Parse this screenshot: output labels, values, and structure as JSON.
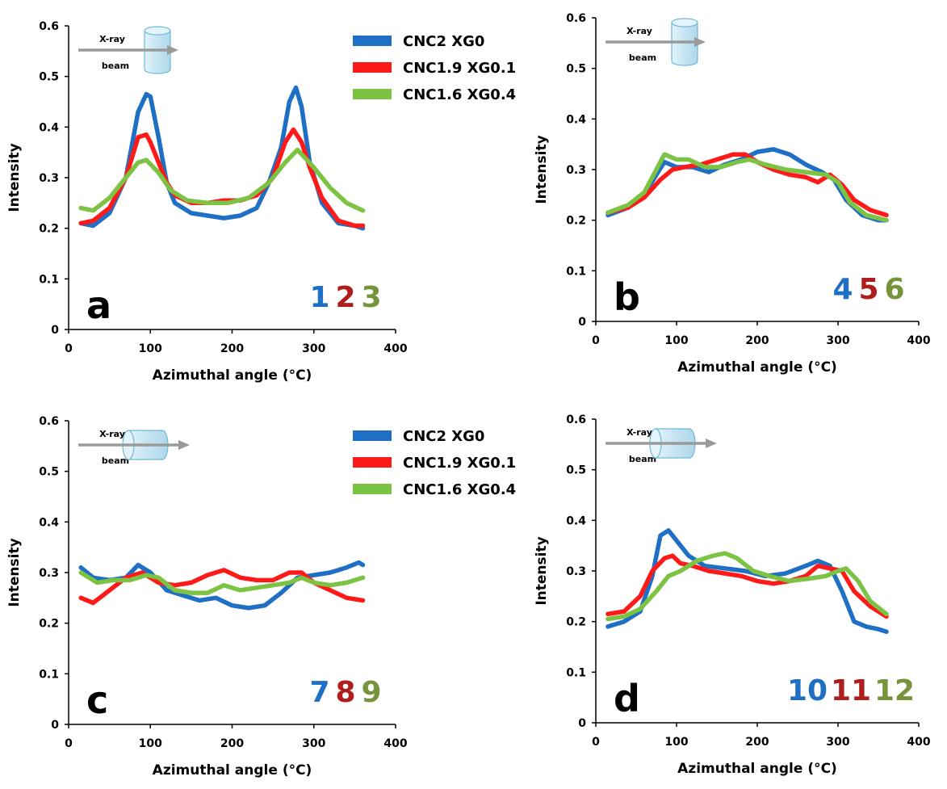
{
  "colors": {
    "series1": "#1f6fc5",
    "series2": "#ff1a1a",
    "series3": "#7cc243",
    "num1": "#1f6fc5",
    "num2": "#b01d1d",
    "num3": "#77933c",
    "cyl": "#cde8f2"
  },
  "xlabel": "Azimuthal angle (°C)",
  "ylabel": "Intensity",
  "inset": {
    "line1": "X-ray",
    "line2": "beam"
  },
  "chart_data": [
    {
      "type": "line",
      "panel": "a",
      "xlim": [
        0,
        400
      ],
      "ylim": [
        0,
        0.6
      ],
      "xticks": [
        0,
        100,
        200,
        300,
        400
      ],
      "yticks": [
        0,
        0.1,
        0.2,
        0.3,
        0.4,
        0.5,
        0.6
      ],
      "xlabel": "Azimuthal angle (°C)",
      "ylabel": "Intensity",
      "legend": "top-right",
      "sample_numbers": [
        "1",
        "2",
        "3"
      ],
      "cylinder": "vertical",
      "series": [
        {
          "name": "CNC2 XG0",
          "x": [
            15,
            30,
            50,
            70,
            85,
            95,
            100,
            110,
            120,
            130,
            150,
            170,
            190,
            210,
            230,
            245,
            260,
            270,
            278,
            285,
            295,
            310,
            330,
            350,
            360
          ],
          "y": [
            0.21,
            0.205,
            0.23,
            0.3,
            0.43,
            0.465,
            0.46,
            0.38,
            0.29,
            0.25,
            0.23,
            0.225,
            0.22,
            0.225,
            0.24,
            0.29,
            0.36,
            0.45,
            0.478,
            0.44,
            0.33,
            0.25,
            0.21,
            0.205,
            0.2
          ]
        },
        {
          "name": "CNC1.9 XG0.1",
          "x": [
            15,
            30,
            50,
            70,
            85,
            95,
            100,
            110,
            120,
            130,
            150,
            170,
            190,
            210,
            230,
            250,
            265,
            275,
            285,
            295,
            310,
            330,
            350,
            360
          ],
          "y": [
            0.21,
            0.215,
            0.24,
            0.3,
            0.38,
            0.385,
            0.37,
            0.33,
            0.29,
            0.265,
            0.25,
            0.25,
            0.255,
            0.255,
            0.265,
            0.3,
            0.37,
            0.395,
            0.37,
            0.32,
            0.26,
            0.215,
            0.205,
            0.205
          ]
        },
        {
          "name": "CNC1.6 XG0.4",
          "x": [
            15,
            30,
            50,
            70,
            85,
            95,
            110,
            125,
            145,
            170,
            195,
            220,
            245,
            265,
            280,
            300,
            320,
            340,
            360
          ],
          "y": [
            0.24,
            0.235,
            0.26,
            0.3,
            0.33,
            0.335,
            0.31,
            0.275,
            0.255,
            0.25,
            0.25,
            0.26,
            0.29,
            0.33,
            0.355,
            0.32,
            0.28,
            0.25,
            0.235
          ]
        }
      ]
    },
    {
      "type": "line",
      "panel": "b",
      "xlim": [
        0,
        400
      ],
      "ylim": [
        0,
        0.6
      ],
      "xticks": [
        0,
        100,
        200,
        300,
        400
      ],
      "yticks": [
        0,
        0.1,
        0.2,
        0.3,
        0.4,
        0.5,
        0.6
      ],
      "xlabel": "Azimuthal angle (°C)",
      "ylabel": "Intensity",
      "sample_numbers": [
        "4",
        "5",
        "6"
      ],
      "cylinder": "vertical",
      "series": [
        {
          "name": "CNC2 XG0",
          "x": [
            15,
            40,
            60,
            75,
            85,
            100,
            120,
            140,
            160,
            180,
            200,
            220,
            240,
            260,
            280,
            295,
            310,
            330,
            350,
            360
          ],
          "y": [
            0.21,
            0.225,
            0.25,
            0.29,
            0.315,
            0.305,
            0.305,
            0.295,
            0.31,
            0.32,
            0.335,
            0.34,
            0.33,
            0.31,
            0.295,
            0.28,
            0.24,
            0.21,
            0.2,
            0.2
          ]
        },
        {
          "name": "CNC1.9 XG0.1",
          "x": [
            15,
            40,
            60,
            80,
            95,
            110,
            130,
            150,
            170,
            185,
            200,
            220,
            240,
            260,
            275,
            290,
            305,
            320,
            340,
            360
          ],
          "y": [
            0.215,
            0.225,
            0.245,
            0.28,
            0.3,
            0.305,
            0.31,
            0.32,
            0.33,
            0.33,
            0.315,
            0.3,
            0.29,
            0.285,
            0.275,
            0.29,
            0.27,
            0.24,
            0.22,
            0.21
          ]
        },
        {
          "name": "CNC1.6 XG0.4",
          "x": [
            15,
            40,
            60,
            75,
            85,
            100,
            115,
            135,
            155,
            175,
            190,
            210,
            235,
            260,
            285,
            300,
            315,
            335,
            360
          ],
          "y": [
            0.215,
            0.23,
            0.255,
            0.3,
            0.33,
            0.32,
            0.32,
            0.305,
            0.305,
            0.315,
            0.32,
            0.31,
            0.3,
            0.295,
            0.29,
            0.275,
            0.235,
            0.21,
            0.2
          ]
        }
      ]
    },
    {
      "type": "line",
      "panel": "c",
      "xlim": [
        0,
        400
      ],
      "ylim": [
        0,
        0.6
      ],
      "xticks": [
        0,
        100,
        200,
        300,
        400
      ],
      "yticks": [
        0,
        0.1,
        0.2,
        0.3,
        0.4,
        0.5,
        0.6
      ],
      "xlabel": "Azimuthal angle (°C)",
      "ylabel": "Intensity",
      "legend": "top-right",
      "sample_numbers": [
        "7",
        "8",
        "9"
      ],
      "cylinder": "horizontal",
      "series": [
        {
          "name": "CNC2 XG0",
          "x": [
            15,
            30,
            50,
            70,
            85,
            100,
            120,
            140,
            160,
            180,
            200,
            220,
            240,
            260,
            280,
            300,
            320,
            340,
            355,
            360
          ],
          "y": [
            0.31,
            0.29,
            0.285,
            0.29,
            0.315,
            0.3,
            0.265,
            0.255,
            0.245,
            0.25,
            0.235,
            0.23,
            0.235,
            0.26,
            0.29,
            0.295,
            0.3,
            0.31,
            0.32,
            0.315
          ]
        },
        {
          "name": "CNC1.9 XG0.1",
          "x": [
            15,
            30,
            50,
            70,
            90,
            110,
            130,
            150,
            170,
            190,
            210,
            230,
            250,
            270,
            285,
            300,
            320,
            340,
            360
          ],
          "y": [
            0.25,
            0.24,
            0.265,
            0.29,
            0.3,
            0.28,
            0.275,
            0.28,
            0.295,
            0.305,
            0.29,
            0.285,
            0.285,
            0.3,
            0.3,
            0.28,
            0.265,
            0.25,
            0.245
          ]
        },
        {
          "name": "CNC1.6 XG0.4",
          "x": [
            15,
            35,
            55,
            75,
            95,
            110,
            130,
            150,
            170,
            190,
            210,
            230,
            250,
            270,
            285,
            300,
            320,
            340,
            360
          ],
          "y": [
            0.3,
            0.28,
            0.285,
            0.285,
            0.295,
            0.29,
            0.265,
            0.26,
            0.26,
            0.275,
            0.265,
            0.27,
            0.275,
            0.28,
            0.29,
            0.28,
            0.275,
            0.28,
            0.29
          ]
        }
      ]
    },
    {
      "type": "line",
      "panel": "d",
      "xlim": [
        0,
        400
      ],
      "ylim": [
        0,
        0.6
      ],
      "xticks": [
        0,
        100,
        200,
        300,
        400
      ],
      "yticks": [
        0,
        0.1,
        0.2,
        0.3,
        0.4,
        0.5,
        0.6
      ],
      "xlabel": "Azimuthal angle (°C)",
      "ylabel": "Intensity",
      "sample_numbers": [
        "10",
        "11",
        "12"
      ],
      "cylinder": "horizontal",
      "series": [
        {
          "name": "CNC2 XG0",
          "x": [
            15,
            35,
            55,
            70,
            80,
            90,
            100,
            115,
            135,
            160,
            185,
            210,
            235,
            260,
            275,
            290,
            305,
            320,
            335,
            350,
            360
          ],
          "y": [
            0.19,
            0.2,
            0.22,
            0.29,
            0.37,
            0.38,
            0.36,
            0.33,
            0.31,
            0.305,
            0.3,
            0.29,
            0.295,
            0.31,
            0.32,
            0.31,
            0.26,
            0.2,
            0.19,
            0.185,
            0.18
          ]
        },
        {
          "name": "CNC1.9 XG0.1",
          "x": [
            15,
            35,
            55,
            70,
            85,
            95,
            105,
            120,
            140,
            160,
            180,
            200,
            220,
            240,
            260,
            275,
            290,
            305,
            320,
            340,
            360
          ],
          "y": [
            0.215,
            0.22,
            0.25,
            0.3,
            0.325,
            0.33,
            0.315,
            0.31,
            0.3,
            0.295,
            0.29,
            0.28,
            0.275,
            0.28,
            0.29,
            0.31,
            0.305,
            0.3,
            0.26,
            0.23,
            0.21
          ]
        },
        {
          "name": "CNC1.6 XG0.4",
          "x": [
            15,
            35,
            55,
            75,
            90,
            105,
            125,
            145,
            160,
            175,
            195,
            215,
            240,
            265,
            285,
            300,
            310,
            325,
            340,
            360
          ],
          "y": [
            0.205,
            0.21,
            0.225,
            0.26,
            0.29,
            0.3,
            0.32,
            0.33,
            0.335,
            0.325,
            0.3,
            0.29,
            0.28,
            0.285,
            0.29,
            0.3,
            0.305,
            0.28,
            0.24,
            0.215
          ]
        }
      ]
    }
  ]
}
